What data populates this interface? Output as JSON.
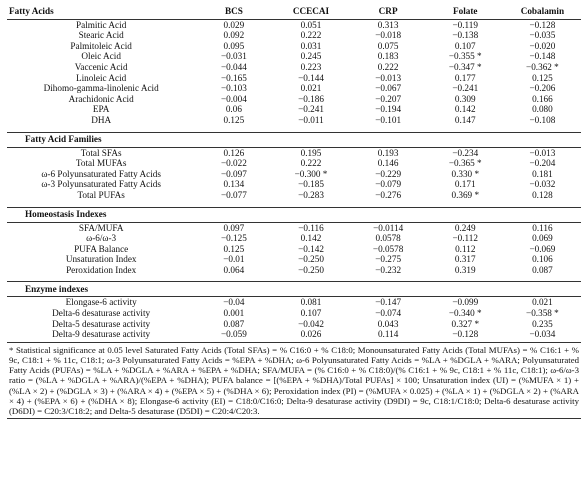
{
  "columns": [
    "Fatty Acids",
    "BCS",
    "CCECAI",
    "CRP",
    "Folate",
    "Cobalamin"
  ],
  "sections": [
    {
      "title": "",
      "rows": [
        [
          "Palmitic Acid",
          "0.029",
          "0.051",
          "0.313",
          "−0.119",
          "−0.128"
        ],
        [
          "Stearic Acid",
          "0.092",
          "0.222",
          "−0.018",
          "−0.138",
          "−0.035"
        ],
        [
          "Palmitoleic Acid",
          "0.095",
          "0.031",
          "0.075",
          "0.107",
          "−0.020"
        ],
        [
          "Oleic Acid",
          "−0.031",
          "0.245",
          "0.183",
          "−0.355 *",
          "−0.148"
        ],
        [
          "Vaccenic Acid",
          "−0.044",
          "0.223",
          "0.222",
          "−0.347 *",
          "−0.362 *"
        ],
        [
          "Linoleic Acid",
          "−0.165",
          "−0.144",
          "−0.013",
          "0.177",
          "0.125"
        ],
        [
          "Dihomo-gamma-linolenic Acid",
          "−0.103",
          "0.021",
          "−0.067",
          "−0.241",
          "−0.206"
        ],
        [
          "Arachidonic Acid",
          "−0.004",
          "−0.186",
          "−0.207",
          "0.309",
          "0.166"
        ],
        [
          "EPA",
          "0.06",
          "−0.241",
          "−0.194",
          "0.142",
          "0.080"
        ],
        [
          "DHA",
          "0.125",
          "−0.011",
          "−0.101",
          "0.147",
          "−0.108"
        ]
      ]
    },
    {
      "title": "Fatty Acid Families",
      "rows": [
        [
          "Total SFAs",
          "0.126",
          "0.195",
          "0.193",
          "−0.234",
          "−0.013"
        ],
        [
          "Total MUFAs",
          "−0.022",
          "0.222",
          "0.146",
          "−0.365 *",
          "−0.204"
        ],
        [
          "ω-6 Polyunsaturated Fatty Acids",
          "−0.097",
          "−0.300 *",
          "−0.229",
          "0.330 *",
          "0.181"
        ],
        [
          "ω-3 Polyunsaturated Fatty Acids",
          "0.134",
          "−0.185",
          "−0.079",
          "0.171",
          "−0.032"
        ],
        [
          "Total PUFAs",
          "−0.077",
          "−0.283",
          "−0.276",
          "0.369 *",
          "0.128"
        ]
      ]
    },
    {
      "title": "Homeostasis Indexes",
      "rows": [
        [
          "SFA/MUFA",
          "0.097",
          "−0.116",
          "−0.0114",
          "0.249",
          "0.116"
        ],
        [
          "ω-6/ω-3",
          "−0.125",
          "0.142",
          "0.0578",
          "−0.112",
          "0.069"
        ],
        [
          "PUFA Balance",
          "0.125",
          "−0.142",
          "−0.0578",
          "0.112",
          "−0.069"
        ],
        [
          "Unsaturation Index",
          "−0.01",
          "−0.250",
          "−0.275",
          "0.317",
          "0.106"
        ],
        [
          "Peroxidation Index",
          "0.064",
          "−0.250",
          "−0.232",
          "0.319",
          "0.087"
        ]
      ]
    },
    {
      "title": "Enzyme indexes",
      "rows": [
        [
          "Elongase-6 activity",
          "−0.04",
          "0.081",
          "−0.147",
          "−0.099",
          "0.021"
        ],
        [
          "Delta-6 desaturase activity",
          "0.001",
          "0.107",
          "−0.074",
          "−0.340 *",
          "−0.358 *"
        ],
        [
          "Delta-5 desaturase activity",
          "0.087",
          "−0.042",
          "0.043",
          "0.327 *",
          "0.235"
        ],
        [
          "Delta-9 desaturase activity",
          "−0.059",
          "0.026",
          "0.114",
          "−0.128",
          "−0.034"
        ]
      ]
    }
  ],
  "footnote": "* Statistical significance at 0.05 level Saturated Fatty Acids (Total SFAs) = % C16:0 + % C18:0; Monounsaturated Fatty Acids (Total MUFAs) = % C16:1 + % 9c, C18:1 + % 11c, C18:1; ω-3 Polyunsaturated Fatty Acids = %EPA + %DHA; ω-6 Polyunsaturated Fatty Acids = %LA + %DGLA + %ARA; Polyunsaturated Fatty Acids (PUFAs) = %LA + %DGLA + %ARA + %EPA + %DHA; SFA/MUFA = (% C16:0 + % C18:0)/(% C16:1 + % 9c, C18:1 + % 11c, C18:1); ω-6/ω-3 ratio = (%LA + %DGLA + %ARA)/(%EPA + %DHA); PUFA balance = [(%EPA + %DHA)/Total PUFAs] × 100; Unsaturation index (UI) = (%MUFA × 1) + (%LA × 2) + (%DGLA × 3) + (%ARA × 4) + (%EPA × 5) + (%DHA × 6); Peroxidation index (PI) = (%MUFA × 0.025) + (%LA × 1) + (%DGLA × 2) + (%ARA × 4) + (%EPA × 6) + (%DHA × 8); Elongase-6 activity (EI) = C18:0/C16:0; Delta-9 desaturase activity (D9DI) = 9c, C18:1/C18:0; Delta-6 desaturase activity (D6DI) = C20:3/C18:2; and Delta-5 desaturase (D5DI) = C20:4/C20:3."
}
